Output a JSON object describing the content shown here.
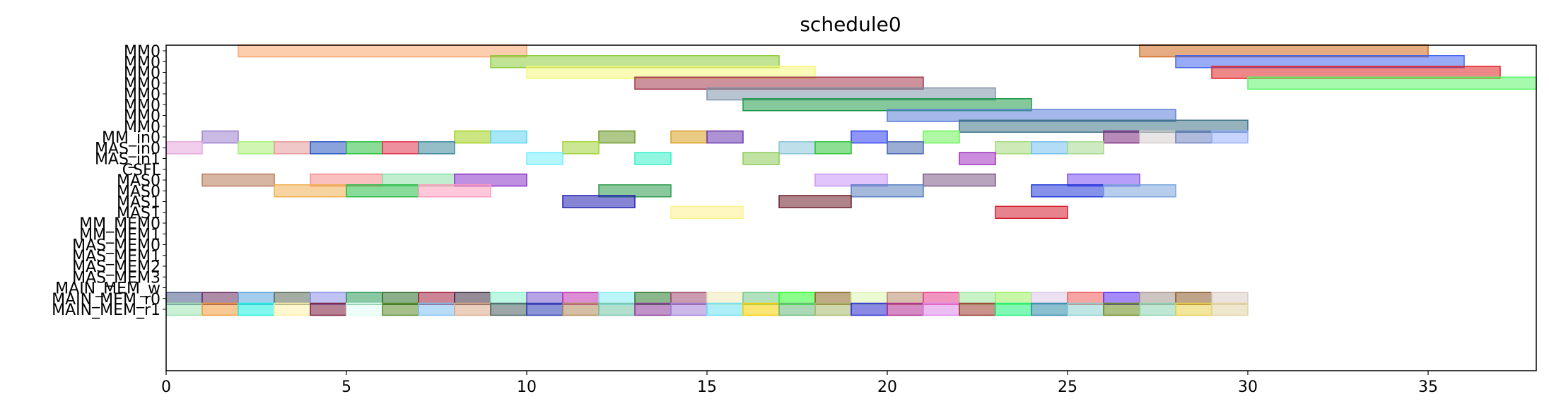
{
  "chart_data": {
    "type": "gantt",
    "title": "schedule0",
    "xlim": [
      0,
      38
    ],
    "x_ticks": [
      0,
      5,
      10,
      15,
      20,
      25,
      30,
      35
    ],
    "x_tick_labels": [
      "0",
      "5",
      "10",
      "15",
      "20",
      "25",
      "30",
      "35"
    ],
    "rows": [
      "MM0",
      "MM0",
      "MM0",
      "MM0",
      "MM0",
      "MM0",
      "MM0",
      "MM0",
      "MM_in0",
      "MAS_in0",
      "MAS_in1",
      "CSFL",
      "MAS0",
      "MAS0",
      "MAS1",
      "MAS1",
      "MM_MEM0",
      "MM_MEM1",
      "MAS_MEM0",
      "MAS_MEM1",
      "MAS_MEM2",
      "MAS_MEM3",
      "MAIN_MEM_w",
      "MAIN_MEM_r0",
      "MAIN_MEM_r1"
    ],
    "tasks": [
      {
        "row": 0,
        "start": 2,
        "end": 10,
        "color": "#f9a66b"
      },
      {
        "row": 0,
        "start": 27,
        "end": 35,
        "color": "#d2691e"
      },
      {
        "row": 1,
        "start": 9,
        "end": 17,
        "color": "#8ccc3c"
      },
      {
        "row": 1,
        "start": 28,
        "end": 36,
        "color": "#4466ee"
      },
      {
        "row": 2,
        "start": 10,
        "end": 18,
        "color": "#f5f77a"
      },
      {
        "row": 2,
        "start": 29,
        "end": 37,
        "color": "#e02424"
      },
      {
        "row": 3,
        "start": 13,
        "end": 21,
        "color": "#a33a4c"
      },
      {
        "row": 3,
        "start": 30,
        "end": 38,
        "color": "#5cf56a"
      },
      {
        "row": 4,
        "start": 15,
        "end": 23,
        "color": "#7d94a8"
      },
      {
        "row": 5,
        "start": 16,
        "end": 24,
        "color": "#1f9a4a"
      },
      {
        "row": 6,
        "start": 20,
        "end": 28,
        "color": "#5a7fd8"
      },
      {
        "row": 7,
        "start": 22,
        "end": 30,
        "color": "#3f7386"
      },
      {
        "row": 8,
        "start": 1,
        "end": 2,
        "color": "#9b7fcf"
      },
      {
        "row": 8,
        "start": 8,
        "end": 9,
        "color": "#a2cf1e"
      },
      {
        "row": 8,
        "start": 9,
        "end": 10,
        "color": "#5fd4ee"
      },
      {
        "row": 8,
        "start": 12,
        "end": 13,
        "color": "#6e9a2a"
      },
      {
        "row": 8,
        "start": 14,
        "end": 15,
        "color": "#d8a020"
      },
      {
        "row": 8,
        "start": 15,
        "end": 16,
        "color": "#6a38b0"
      },
      {
        "row": 8,
        "start": 19,
        "end": 20,
        "color": "#3040f0"
      },
      {
        "row": 8,
        "start": 21,
        "end": 22,
        "color": "#6ef45a"
      },
      {
        "row": 8,
        "start": 26,
        "end": 27,
        "color": "#7e2a7e"
      },
      {
        "row": 8,
        "start": 27,
        "end": 28,
        "color": "#d8cfcf"
      },
      {
        "row": 8,
        "start": 28,
        "end": 29,
        "color": "#6e82c0"
      },
      {
        "row": 8,
        "start": 29,
        "end": 30,
        "color": "#98b0ff"
      },
      {
        "row": 9,
        "start": 0,
        "end": 1,
        "color": "#e6a8dc"
      },
      {
        "row": 9,
        "start": 2,
        "end": 3,
        "color": "#a8ee74"
      },
      {
        "row": 9,
        "start": 3,
        "end": 4,
        "color": "#e69a9a"
      },
      {
        "row": 9,
        "start": 4,
        "end": 5,
        "color": "#2a58c0"
      },
      {
        "row": 9,
        "start": 5,
        "end": 6,
        "color": "#2ac040"
      },
      {
        "row": 9,
        "start": 6,
        "end": 7,
        "color": "#e0344e"
      },
      {
        "row": 9,
        "start": 7,
        "end": 8,
        "color": "#3c8a9a"
      },
      {
        "row": 9,
        "start": 11,
        "end": 12,
        "color": "#a2d43a"
      },
      {
        "row": 9,
        "start": 17,
        "end": 18,
        "color": "#8ac4d8"
      },
      {
        "row": 9,
        "start": 18,
        "end": 19,
        "color": "#2ec43a"
      },
      {
        "row": 9,
        "start": 20,
        "end": 21,
        "color": "#4a6ab0"
      },
      {
        "row": 9,
        "start": 23,
        "end": 24,
        "color": "#a6d87c"
      },
      {
        "row": 9,
        "start": 24,
        "end": 25,
        "color": "#74bff0"
      },
      {
        "row": 9,
        "start": 25,
        "end": 26,
        "color": "#a6d890"
      },
      {
        "row": 10,
        "start": 10,
        "end": 11,
        "color": "#74eeff"
      },
      {
        "row": 10,
        "start": 13,
        "end": 14,
        "color": "#36f0c8"
      },
      {
        "row": 10,
        "start": 16,
        "end": 17,
        "color": "#8ccc5a"
      },
      {
        "row": 10,
        "start": 22,
        "end": 23,
        "color": "#a030c0"
      },
      {
        "row": 12,
        "start": 1,
        "end": 3,
        "color": "#b87a5a"
      },
      {
        "row": 12,
        "start": 4,
        "end": 6,
        "color": "#f58a8a"
      },
      {
        "row": 12,
        "start": 6,
        "end": 8,
        "color": "#8ce0a8"
      },
      {
        "row": 12,
        "start": 8,
        "end": 10,
        "color": "#8a34c8"
      },
      {
        "row": 12,
        "start": 18,
        "end": 20,
        "color": "#c896f5"
      },
      {
        "row": 12,
        "start": 21,
        "end": 23,
        "color": "#7e5a86"
      },
      {
        "row": 12,
        "start": 25,
        "end": 27,
        "color": "#7a50ee"
      },
      {
        "row": 13,
        "start": 3,
        "end": 5,
        "color": "#f0b050"
      },
      {
        "row": 13,
        "start": 5,
        "end": 7,
        "color": "#28be46"
      },
      {
        "row": 13,
        "start": 7,
        "end": 9,
        "color": "#ff9abe"
      },
      {
        "row": 13,
        "start": 12,
        "end": 14,
        "color": "#2e9a4e"
      },
      {
        "row": 13,
        "start": 19,
        "end": 21,
        "color": "#5a80c0"
      },
      {
        "row": 13,
        "start": 24,
        "end": 26,
        "color": "#2238d8"
      },
      {
        "row": 13,
        "start": 26,
        "end": 28,
        "color": "#7aa4dc"
      },
      {
        "row": 14,
        "start": 11,
        "end": 13,
        "color": "#2020b0"
      },
      {
        "row": 14,
        "start": 17,
        "end": 19,
        "color": "#6e1e2a"
      },
      {
        "row": 15,
        "start": 14,
        "end": 16,
        "color": "#fff08a"
      },
      {
        "row": 15,
        "start": 23,
        "end": 25,
        "color": "#d41e2e"
      },
      {
        "row": 23,
        "start": 0,
        "end": 1,
        "color": "#485888"
      },
      {
        "row": 23,
        "start": 1,
        "end": 2,
        "color": "#6a2e60"
      },
      {
        "row": 23,
        "start": 2,
        "end": 3,
        "color": "#5aa4dc"
      },
      {
        "row": 23,
        "start": 3,
        "end": 4,
        "color": "#5a6a5a"
      },
      {
        "row": 23,
        "start": 4,
        "end": 5,
        "color": "#8a90e8"
      },
      {
        "row": 23,
        "start": 5,
        "end": 6,
        "color": "#2a9a5a"
      },
      {
        "row": 23,
        "start": 6,
        "end": 7,
        "color": "#2c6e2a"
      },
      {
        "row": 23,
        "start": 7,
        "end": 8,
        "color": "#a0203c"
      },
      {
        "row": 23,
        "start": 8,
        "end": 9,
        "color": "#3a2c40"
      },
      {
        "row": 23,
        "start": 9,
        "end": 10,
        "color": "#8af0d0"
      },
      {
        "row": 23,
        "start": 10,
        "end": 11,
        "color": "#7c5ad0"
      },
      {
        "row": 23,
        "start": 11,
        "end": 12,
        "color": "#c030b0"
      },
      {
        "row": 23,
        "start": 12,
        "end": 13,
        "color": "#86eef5"
      },
      {
        "row": 23,
        "start": 13,
        "end": 14,
        "color": "#2e7a2e"
      },
      {
        "row": 23,
        "start": 14,
        "end": 15,
        "color": "#a04a70"
      },
      {
        "row": 23,
        "start": 15,
        "end": 16,
        "color": "#f0eab8"
      },
      {
        "row": 23,
        "start": 16,
        "end": 17,
        "color": "#74c888"
      },
      {
        "row": 23,
        "start": 17,
        "end": 18,
        "color": "#2aff2a"
      },
      {
        "row": 23,
        "start": 18,
        "end": 19,
        "color": "#8a6420"
      },
      {
        "row": 23,
        "start": 19,
        "end": 20,
        "color": "#dcf5b0"
      },
      {
        "row": 23,
        "start": 20,
        "end": 21,
        "color": "#b88a6c"
      },
      {
        "row": 23,
        "start": 21,
        "end": 22,
        "color": "#e83c8c"
      },
      {
        "row": 23,
        "start": 22,
        "end": 23,
        "color": "#9ce89c"
      },
      {
        "row": 23,
        "start": 23,
        "end": 24,
        "color": "#9cf060"
      },
      {
        "row": 23,
        "start": 24,
        "end": 25,
        "color": "#dcc8e8"
      },
      {
        "row": 23,
        "start": 25,
        "end": 26,
        "color": "#f05a5a"
      },
      {
        "row": 23,
        "start": 26,
        "end": 27,
        "color": "#5a2cf0"
      },
      {
        "row": 23,
        "start": 27,
        "end": 28,
        "color": "#a8968c"
      },
      {
        "row": 23,
        "start": 28,
        "end": 29,
        "color": "#8a5a2a"
      },
      {
        "row": 23,
        "start": 29,
        "end": 30,
        "color": "#d8ccc4"
      },
      {
        "row": 24,
        "start": 0,
        "end": 1,
        "color": "#9ce2b0"
      },
      {
        "row": 24,
        "start": 1,
        "end": 2,
        "color": "#f09a3a"
      },
      {
        "row": 24,
        "start": 2,
        "end": 3,
        "color": "#1ef0e0"
      },
      {
        "row": 24,
        "start": 3,
        "end": 4,
        "color": "#fff0a8"
      },
      {
        "row": 24,
        "start": 4,
        "end": 5,
        "color": "#7a1a3a"
      },
      {
        "row": 24,
        "start": 5,
        "end": 6,
        "color": "#e0fff4"
      },
      {
        "row": 24,
        "start": 6,
        "end": 7,
        "color": "#5a8a2a"
      },
      {
        "row": 24,
        "start": 7,
        "end": 8,
        "color": "#80c0f0"
      },
      {
        "row": 24,
        "start": 8,
        "end": 9,
        "color": "#dcaa88"
      },
      {
        "row": 24,
        "start": 9,
        "end": 10,
        "color": "#4a6060"
      },
      {
        "row": 24,
        "start": 10,
        "end": 11,
        "color": "#2a3ab0"
      },
      {
        "row": 24,
        "start": 11,
        "end": 12,
        "color": "#b08a5a"
      },
      {
        "row": 24,
        "start": 12,
        "end": 13,
        "color": "#74c4a8"
      },
      {
        "row": 24,
        "start": 13,
        "end": 14,
        "color": "#8a3a9a"
      },
      {
        "row": 24,
        "start": 14,
        "end": 15,
        "color": "#a080d8"
      },
      {
        "row": 24,
        "start": 15,
        "end": 16,
        "color": "#6ae0f0"
      },
      {
        "row": 24,
        "start": 16,
        "end": 17,
        "color": "#f8d000"
      },
      {
        "row": 24,
        "start": 17,
        "end": 18,
        "color": "#6ab878"
      },
      {
        "row": 24,
        "start": 18,
        "end": 19,
        "color": "#a8b86a"
      },
      {
        "row": 24,
        "start": 19,
        "end": 20,
        "color": "#2a2ad0"
      },
      {
        "row": 24,
        "start": 20,
        "end": 21,
        "color": "#b02a90"
      },
      {
        "row": 24,
        "start": 21,
        "end": 22,
        "color": "#dc86e8"
      },
      {
        "row": 24,
        "start": 22,
        "end": 23,
        "color": "#9a3a2a"
      },
      {
        "row": 24,
        "start": 23,
        "end": 24,
        "color": "#1af07a"
      },
      {
        "row": 24,
        "start": 24,
        "end": 25,
        "color": "#2a8aa8"
      },
      {
        "row": 24,
        "start": 25,
        "end": 26,
        "color": "#8ad0d0"
      },
      {
        "row": 24,
        "start": 26,
        "end": 27,
        "color": "#6a8a1a"
      },
      {
        "row": 24,
        "start": 27,
        "end": 28,
        "color": "#8ad4b0"
      },
      {
        "row": 24,
        "start": 28,
        "end": 29,
        "color": "#e8d04a"
      },
      {
        "row": 24,
        "start": 29,
        "end": 30,
        "color": "#e0d4a0"
      }
    ]
  }
}
